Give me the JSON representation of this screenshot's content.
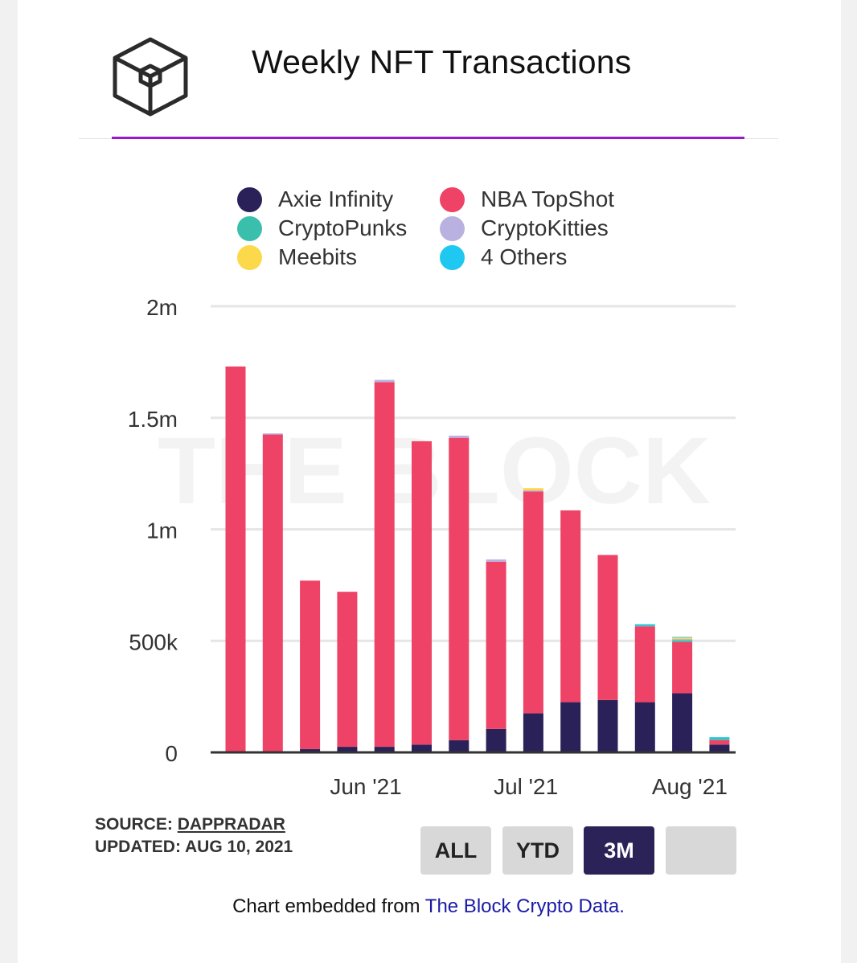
{
  "header": {
    "title": "Weekly NFT Transactions"
  },
  "legend": [
    {
      "label": "Axie Infinity",
      "color": "#2a2158"
    },
    {
      "label": "NBA TopShot",
      "color": "#ee4266"
    },
    {
      "label": "CryptoPunks",
      "color": "#3bbfad"
    },
    {
      "label": "CryptoKitties",
      "color": "#b9b2e0"
    },
    {
      "label": "Meebits",
      "color": "#fbd94a"
    },
    {
      "label": "4 Others",
      "color": "#1ec8f0"
    }
  ],
  "chart_data": {
    "type": "bar",
    "stacked": true,
    "watermark": "THE BLOCK",
    "y_ticks": [
      "0",
      "500k",
      "1m",
      "1.5m",
      "2m"
    ],
    "y_tick_values": [
      0,
      500000,
      1000000,
      1500000,
      2000000
    ],
    "ylim": [
      0,
      2000000
    ],
    "x_tick_labels": [
      {
        "label": "Jun '21",
        "index": 3.5
      },
      {
        "label": "Jul '21",
        "index": 7.8
      },
      {
        "label": "Aug '21",
        "index": 12.2
      }
    ],
    "grid": true,
    "legend_position": "top",
    "series": [
      {
        "name": "Axie Infinity",
        "color": "#2a2158",
        "values": [
          5000,
          5000,
          15000,
          25000,
          25000,
          35000,
          55000,
          105000,
          175000,
          225000,
          235000,
          225000,
          265000,
          35000
        ]
      },
      {
        "name": "NBA TopShot",
        "color": "#ee4266",
        "values": [
          1725000,
          1420000,
          755000,
          695000,
          1635000,
          1360000,
          1355000,
          750000,
          995000,
          860000,
          650000,
          340000,
          230000,
          20000
        ]
      },
      {
        "name": "CryptoPunks",
        "color": "#3bbfad",
        "values": [
          0,
          0,
          0,
          0,
          0,
          0,
          0,
          0,
          0,
          0,
          0,
          5000,
          8000,
          8000
        ]
      },
      {
        "name": "CryptoKitties",
        "color": "#b9b2e0",
        "values": [
          0,
          5000,
          0,
          0,
          10000,
          0,
          10000,
          10000,
          5000,
          0,
          0,
          0,
          5000,
          0
        ]
      },
      {
        "name": "Meebits",
        "color": "#fbd94a",
        "values": [
          0,
          0,
          0,
          0,
          0,
          0,
          0,
          0,
          10000,
          0,
          0,
          0,
          8000,
          0
        ]
      },
      {
        "name": "4 Others",
        "color": "#1ec8f0",
        "values": [
          0,
          0,
          0,
          0,
          0,
          0,
          0,
          0,
          0,
          0,
          0,
          5000,
          2000,
          5000
        ]
      }
    ]
  },
  "footer": {
    "source_label": "SOURCE:",
    "source_name": "DAPPRADAR",
    "updated": "UPDATED: AUG 10, 2021",
    "range_buttons": [
      "ALL",
      "YTD",
      "3M",
      ""
    ],
    "active_range": "3M",
    "embed_text": "Chart embedded from ",
    "embed_link": "The Block Crypto Data."
  }
}
